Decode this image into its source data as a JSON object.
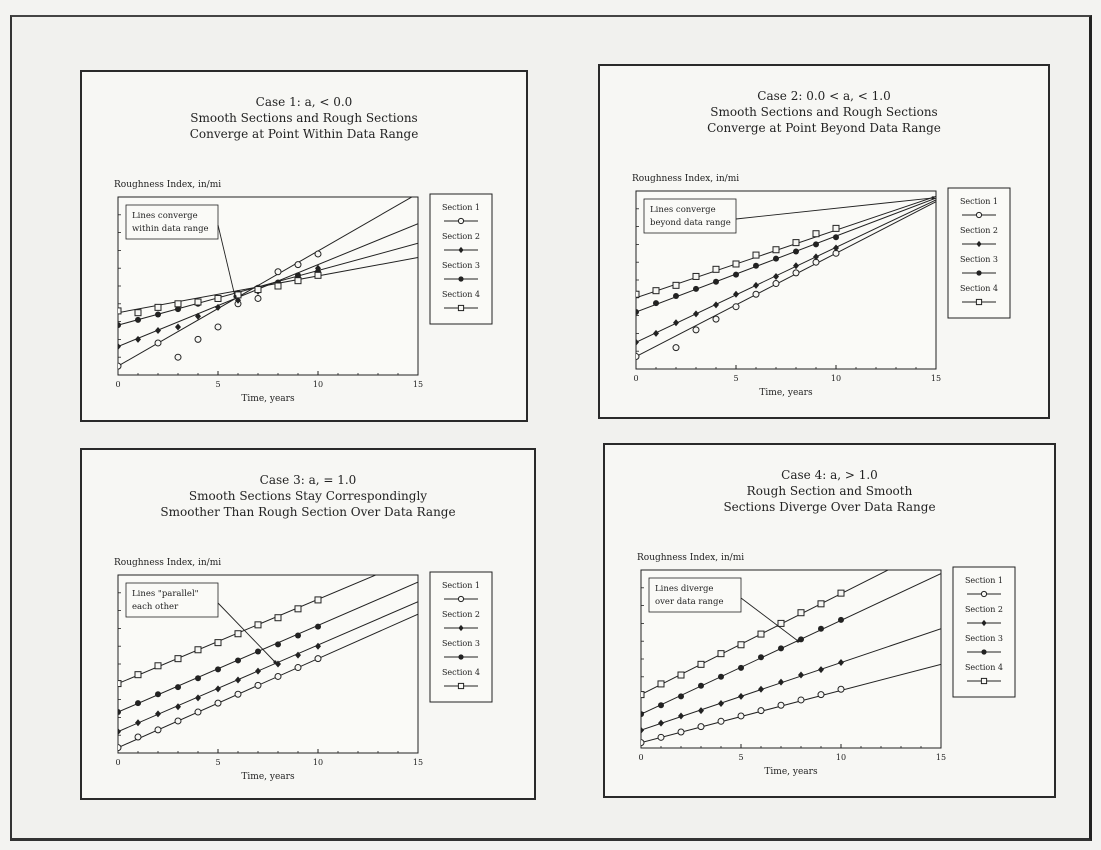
{
  "chart_data": [
    {
      "type": "scatter",
      "title": [
        "Case 1: a, < 0.0",
        "Smooth Sections and Rough Sections",
        "Converge at Point Within Data Range"
      ],
      "ylabel": "Roughness Index, in/mi",
      "xlabel": "Time, years",
      "xlim": [
        0,
        15
      ],
      "ylim": [
        0,
        1
      ],
      "xticks": [
        "0",
        "5",
        "10",
        "15"
      ],
      "annotation": [
        "Lines converge",
        "within data range"
      ],
      "legend": [
        "Section 1",
        "Section 2",
        "Section 3",
        "Section 4"
      ],
      "series": [
        {
          "name": "Section 1",
          "line": [
            [
              0,
              0.05
            ],
            [
              15,
              1.02
            ]
          ],
          "points": [
            [
              0,
              0.05
            ],
            [
              2,
              0.18
            ],
            [
              3,
              0.1
            ],
            [
              4,
              0.2
            ],
            [
              5,
              0.27
            ],
            [
              6,
              0.4
            ],
            [
              7,
              0.43
            ],
            [
              8,
              0.58
            ],
            [
              9,
              0.62
            ],
            [
              10,
              0.68
            ]
          ]
        },
        {
          "name": "Section 2",
          "line": [
            [
              0,
              0.16
            ],
            [
              15,
              0.85
            ]
          ],
          "points": [
            [
              0,
              0.16
            ],
            [
              1,
              0.2
            ],
            [
              2,
              0.25
            ],
            [
              3,
              0.27
            ],
            [
              4,
              0.33
            ],
            [
              5,
              0.38
            ],
            [
              6,
              0.42
            ],
            [
              7,
              0.47
            ],
            [
              8,
              0.51
            ],
            [
              9,
              0.55
            ],
            [
              10,
              0.6
            ]
          ]
        },
        {
          "name": "Section 3",
          "line": [
            [
              0,
              0.28
            ],
            [
              15,
              0.74
            ]
          ],
          "points": [
            [
              0,
              0.28
            ],
            [
              1,
              0.31
            ],
            [
              2,
              0.34
            ],
            [
              3,
              0.37
            ],
            [
              4,
              0.4
            ],
            [
              5,
              0.43
            ],
            [
              6,
              0.46
            ],
            [
              7,
              0.49
            ],
            [
              8,
              0.52
            ],
            [
              9,
              0.56
            ],
            [
              10,
              0.58
            ]
          ]
        },
        {
          "name": "Section 4",
          "line": [
            [
              0,
              0.35
            ],
            [
              15,
              0.66
            ]
          ],
          "points": [
            [
              0,
              0.36
            ],
            [
              1,
              0.35
            ],
            [
              2,
              0.38
            ],
            [
              3,
              0.4
            ],
            [
              4,
              0.41
            ],
            [
              5,
              0.43
            ],
            [
              6,
              0.45
            ],
            [
              7,
              0.48
            ],
            [
              8,
              0.5
            ],
            [
              9,
              0.53
            ],
            [
              10,
              0.56
            ]
          ]
        }
      ]
    },
    {
      "type": "scatter",
      "title": [
        "Case 2: 0.0 < a, < 1.0",
        "Smooth Sections and Rough Sections",
        "Converge at Point Beyond Data Range"
      ],
      "ylabel": "Roughness Index, in/mi",
      "xlabel": "Time, years",
      "xlim": [
        0,
        15
      ],
      "ylim": [
        0,
        1
      ],
      "xticks": [
        "0",
        "5",
        "10",
        "15"
      ],
      "annotation": [
        "Lines converge",
        "beyond data range"
      ],
      "legend": [
        "Section 1",
        "Section 2",
        "Section 3",
        "Section 4"
      ],
      "series": [
        {
          "name": "Section 1",
          "line": [
            [
              0,
              0.07
            ],
            [
              15,
              0.94
            ]
          ],
          "points": [
            [
              0,
              0.07
            ],
            [
              2,
              0.12
            ],
            [
              3,
              0.22
            ],
            [
              4,
              0.28
            ],
            [
              5,
              0.35
            ],
            [
              6,
              0.42
            ],
            [
              7,
              0.48
            ],
            [
              8,
              0.54
            ],
            [
              9,
              0.6
            ],
            [
              10,
              0.65
            ]
          ]
        },
        {
          "name": "Section 2",
          "line": [
            [
              0,
              0.15
            ],
            [
              15,
              0.95
            ]
          ],
          "points": [
            [
              0,
              0.15
            ],
            [
              1,
              0.2
            ],
            [
              2,
              0.26
            ],
            [
              3,
              0.31
            ],
            [
              4,
              0.36
            ],
            [
              5,
              0.42
            ],
            [
              6,
              0.47
            ],
            [
              7,
              0.52
            ],
            [
              8,
              0.58
            ],
            [
              9,
              0.63
            ],
            [
              10,
              0.68
            ]
          ]
        },
        {
          "name": "Section 3",
          "line": [
            [
              0,
              0.32
            ],
            [
              15,
              0.96
            ]
          ],
          "points": [
            [
              0,
              0.32
            ],
            [
              1,
              0.37
            ],
            [
              2,
              0.41
            ],
            [
              3,
              0.45
            ],
            [
              4,
              0.49
            ],
            [
              5,
              0.53
            ],
            [
              6,
              0.58
            ],
            [
              7,
              0.62
            ],
            [
              8,
              0.66
            ],
            [
              9,
              0.7
            ],
            [
              10,
              0.74
            ]
          ]
        },
        {
          "name": "Section 4",
          "line": [
            [
              0,
              0.4
            ],
            [
              15,
              0.97
            ]
          ],
          "points": [
            [
              0,
              0.42
            ],
            [
              1,
              0.44
            ],
            [
              2,
              0.47
            ],
            [
              3,
              0.52
            ],
            [
              4,
              0.56
            ],
            [
              5,
              0.59
            ],
            [
              6,
              0.64
            ],
            [
              7,
              0.67
            ],
            [
              8,
              0.71
            ],
            [
              9,
              0.76
            ],
            [
              10,
              0.79
            ]
          ]
        }
      ]
    },
    {
      "type": "scatter",
      "title": [
        "Case 3: a, = 1.0",
        "Smooth Sections Stay Correspondingly",
        "Smoother Than Rough Section Over Data Range"
      ],
      "ylabel": "Roughness Index, in/mi",
      "xlabel": "Time, years",
      "xlim": [
        0,
        15
      ],
      "ylim": [
        0,
        1
      ],
      "xticks": [
        "0",
        "5",
        "10",
        "15"
      ],
      "annotation": [
        "Lines \"parallel\"",
        "each other"
      ],
      "legend": [
        "Section 1",
        "Section 2",
        "Section 3",
        "Section 4"
      ],
      "series": [
        {
          "name": "Section 1",
          "line": [
            [
              0,
              0.03
            ],
            [
              15,
              0.78
            ]
          ],
          "points": [
            [
              0,
              0.03
            ],
            [
              1,
              0.09
            ],
            [
              2,
              0.13
            ],
            [
              3,
              0.18
            ],
            [
              4,
              0.23
            ],
            [
              5,
              0.28
            ],
            [
              6,
              0.33
            ],
            [
              7,
              0.38
            ],
            [
              8,
              0.43
            ],
            [
              9,
              0.48
            ],
            [
              10,
              0.53
            ]
          ]
        },
        {
          "name": "Section 2",
          "line": [
            [
              0,
              0.12
            ],
            [
              15,
              0.85
            ]
          ],
          "points": [
            [
              0,
              0.12
            ],
            [
              1,
              0.17
            ],
            [
              2,
              0.22
            ],
            [
              3,
              0.26
            ],
            [
              4,
              0.31
            ],
            [
              5,
              0.36
            ],
            [
              6,
              0.41
            ],
            [
              7,
              0.46
            ],
            [
              8,
              0.5
            ],
            [
              9,
              0.55
            ],
            [
              10,
              0.6
            ]
          ]
        },
        {
          "name": "Section 3",
          "line": [
            [
              0,
              0.23
            ],
            [
              15,
              0.96
            ]
          ],
          "points": [
            [
              0,
              0.23
            ],
            [
              1,
              0.28
            ],
            [
              2,
              0.33
            ],
            [
              3,
              0.37
            ],
            [
              4,
              0.42
            ],
            [
              5,
              0.47
            ],
            [
              6,
              0.52
            ],
            [
              7,
              0.57
            ],
            [
              8,
              0.61
            ],
            [
              9,
              0.66
            ],
            [
              10,
              0.71
            ]
          ]
        },
        {
          "name": "Section 4",
          "line": [
            [
              0,
              0.39
            ],
            [
              15,
              1.1
            ]
          ],
          "points": [
            [
              0,
              0.39
            ],
            [
              1,
              0.44
            ],
            [
              2,
              0.49
            ],
            [
              3,
              0.53
            ],
            [
              4,
              0.58
            ],
            [
              5,
              0.62
            ],
            [
              6,
              0.67
            ],
            [
              7,
              0.72
            ],
            [
              8,
              0.76
            ],
            [
              9,
              0.81
            ],
            [
              10,
              0.86
            ]
          ]
        }
      ]
    },
    {
      "type": "scatter",
      "title": [
        "Case 4: a, > 1.0",
        "Rough Section and Smooth",
        "Sections Diverge Over Data Range"
      ],
      "ylabel": "Roughness Index, in/mi",
      "xlabel": "Time, years",
      "xlim": [
        0,
        15
      ],
      "ylim": [
        0,
        1
      ],
      "xticks": [
        "0",
        "5",
        "10",
        "15"
      ],
      "annotation": [
        "Lines diverge",
        "over data range"
      ],
      "legend": [
        "Section 1",
        "Section 2",
        "Section 3",
        "Section 4"
      ],
      "series": [
        {
          "name": "Section 1",
          "line": [
            [
              0,
              0.03
            ],
            [
              15,
              0.47
            ]
          ],
          "points": [
            [
              0,
              0.03
            ],
            [
              1,
              0.06
            ],
            [
              2,
              0.09
            ],
            [
              3,
              0.12
            ],
            [
              4,
              0.15
            ],
            [
              5,
              0.18
            ],
            [
              6,
              0.21
            ],
            [
              7,
              0.24
            ],
            [
              8,
              0.27
            ],
            [
              9,
              0.3
            ],
            [
              10,
              0.33
            ]
          ]
        },
        {
          "name": "Section 2",
          "line": [
            [
              0,
              0.1
            ],
            [
              15,
              0.67
            ]
          ],
          "points": [
            [
              0,
              0.1
            ],
            [
              1,
              0.14
            ],
            [
              2,
              0.18
            ],
            [
              3,
              0.21
            ],
            [
              4,
              0.25
            ],
            [
              5,
              0.29
            ],
            [
              6,
              0.33
            ],
            [
              7,
              0.37
            ],
            [
              8,
              0.41
            ],
            [
              9,
              0.44
            ],
            [
              10,
              0.48
            ]
          ]
        },
        {
          "name": "Section 3",
          "line": [
            [
              0,
              0.19
            ],
            [
              15,
              0.98
            ]
          ],
          "points": [
            [
              0,
              0.19
            ],
            [
              1,
              0.24
            ],
            [
              2,
              0.29
            ],
            [
              3,
              0.35
            ],
            [
              4,
              0.4
            ],
            [
              5,
              0.45
            ],
            [
              6,
              0.51
            ],
            [
              7,
              0.56
            ],
            [
              8,
              0.61
            ],
            [
              9,
              0.67
            ],
            [
              10,
              0.72
            ]
          ]
        },
        {
          "name": "Section 4",
          "line": [
            [
              0,
              0.3
            ],
            [
              15,
              1.15
            ]
          ],
          "points": [
            [
              0,
              0.3
            ],
            [
              1,
              0.36
            ],
            [
              2,
              0.41
            ],
            [
              3,
              0.47
            ],
            [
              4,
              0.53
            ],
            [
              5,
              0.58
            ],
            [
              6,
              0.64
            ],
            [
              7,
              0.7
            ],
            [
              8,
              0.76
            ],
            [
              9,
              0.81
            ],
            [
              10,
              0.87
            ]
          ]
        }
      ]
    }
  ]
}
